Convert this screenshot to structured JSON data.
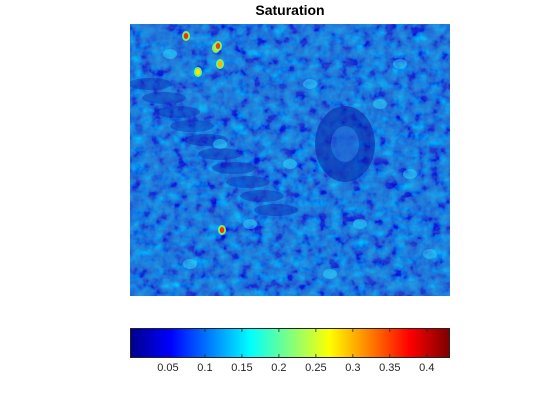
{
  "figure": {
    "title": "Saturation"
  },
  "image": {
    "description_name": "saturation-map",
    "value_range": [
      0,
      0.43
    ],
    "dominant_level": 0.09
  },
  "colorbar": {
    "colormap": "jet",
    "range": [
      0,
      0.43
    ],
    "ticks": [
      "0.05",
      "0.1",
      "0.15",
      "0.2",
      "0.25",
      "0.3",
      "0.35",
      "0.4"
    ],
    "tick_values": [
      0.05,
      0.1,
      0.15,
      0.2,
      0.25,
      0.3,
      0.35,
      0.4
    ]
  }
}
